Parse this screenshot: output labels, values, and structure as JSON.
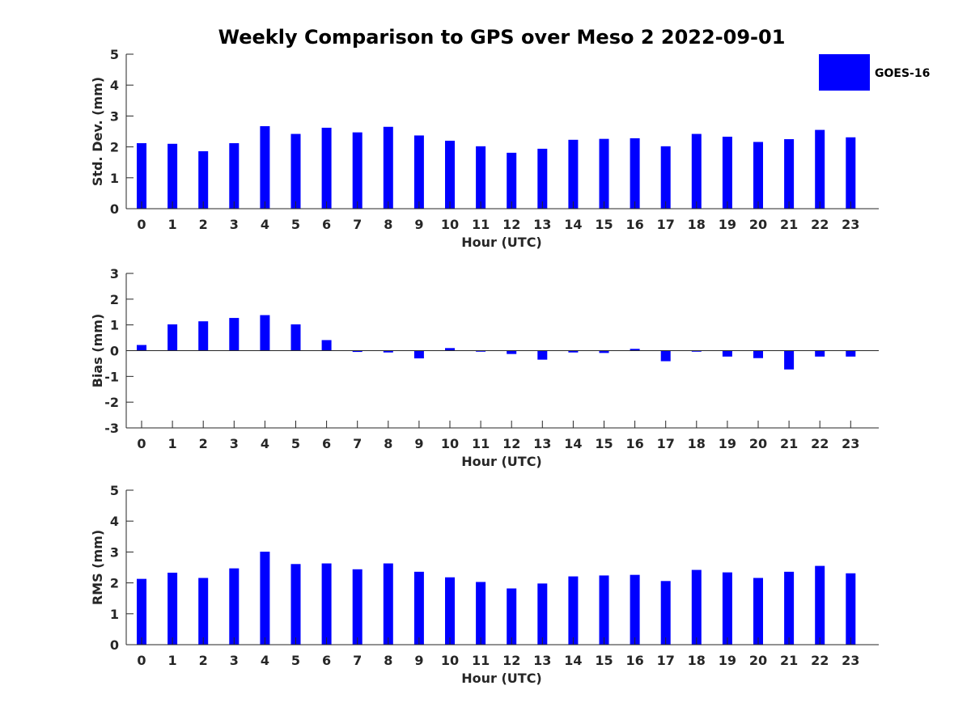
{
  "title": "Weekly Comparison to GPS over Meso 2 2022-09-01",
  "legend": {
    "label": "GOES-16",
    "color": "#0000ff",
    "placement": "top-right"
  },
  "chart_data": [
    {
      "type": "bar",
      "title": "Weekly Comparison to GPS over Meso 2 2022-09-01",
      "xlabel": "Hour (UTC)",
      "ylabel": "Std. Dev. (mm)",
      "ylim": [
        0,
        5
      ],
      "yticks": [
        0,
        1,
        2,
        3,
        4,
        5
      ],
      "categories": [
        "0",
        "1",
        "2",
        "3",
        "4",
        "5",
        "6",
        "7",
        "8",
        "9",
        "10",
        "11",
        "12",
        "13",
        "14",
        "15",
        "16",
        "17",
        "18",
        "19",
        "20",
        "21",
        "22",
        "23"
      ],
      "series": [
        {
          "name": "GOES-16",
          "color": "#0000ff",
          "values": [
            2.12,
            2.1,
            1.86,
            2.12,
            2.67,
            2.42,
            2.62,
            2.47,
            2.65,
            2.37,
            2.2,
            2.02,
            1.81,
            1.94,
            2.23,
            2.26,
            2.28,
            2.02,
            2.42,
            2.33,
            2.16,
            2.25,
            2.55,
            2.31
          ]
        }
      ]
    },
    {
      "type": "bar",
      "xlabel": "Hour (UTC)",
      "ylabel": "Bias (mm)",
      "ylim": [
        -3,
        3
      ],
      "yticks": [
        -3,
        -2,
        -1,
        0,
        1,
        2,
        3
      ],
      "categories": [
        "0",
        "1",
        "2",
        "3",
        "4",
        "5",
        "6",
        "7",
        "8",
        "9",
        "10",
        "11",
        "12",
        "13",
        "14",
        "15",
        "16",
        "17",
        "18",
        "19",
        "20",
        "21",
        "22",
        "23"
      ],
      "series": [
        {
          "name": "GOES-16",
          "color": "#0000ff",
          "values": [
            0.22,
            1.02,
            1.14,
            1.27,
            1.38,
            1.02,
            0.41,
            -0.05,
            -0.07,
            -0.3,
            0.1,
            -0.04,
            -0.13,
            -0.35,
            -0.07,
            -0.09,
            0.07,
            -0.41,
            -0.04,
            -0.23,
            -0.29,
            -0.73,
            -0.23,
            -0.23
          ]
        }
      ]
    },
    {
      "type": "bar",
      "xlabel": "Hour (UTC)",
      "ylabel": "RMS (mm)",
      "ylim": [
        0,
        5
      ],
      "yticks": [
        0,
        1,
        2,
        3,
        4,
        5
      ],
      "categories": [
        "0",
        "1",
        "2",
        "3",
        "4",
        "5",
        "6",
        "7",
        "8",
        "9",
        "10",
        "11",
        "12",
        "13",
        "14",
        "15",
        "16",
        "17",
        "18",
        "19",
        "20",
        "21",
        "22",
        "23"
      ],
      "series": [
        {
          "name": "GOES-16",
          "color": "#0000ff",
          "values": [
            2.13,
            2.33,
            2.16,
            2.47,
            3.01,
            2.61,
            2.63,
            2.44,
            2.63,
            2.36,
            2.18,
            2.03,
            1.82,
            1.98,
            2.21,
            2.24,
            2.26,
            2.06,
            2.42,
            2.34,
            2.16,
            2.36,
            2.55,
            2.31
          ]
        }
      ]
    }
  ]
}
